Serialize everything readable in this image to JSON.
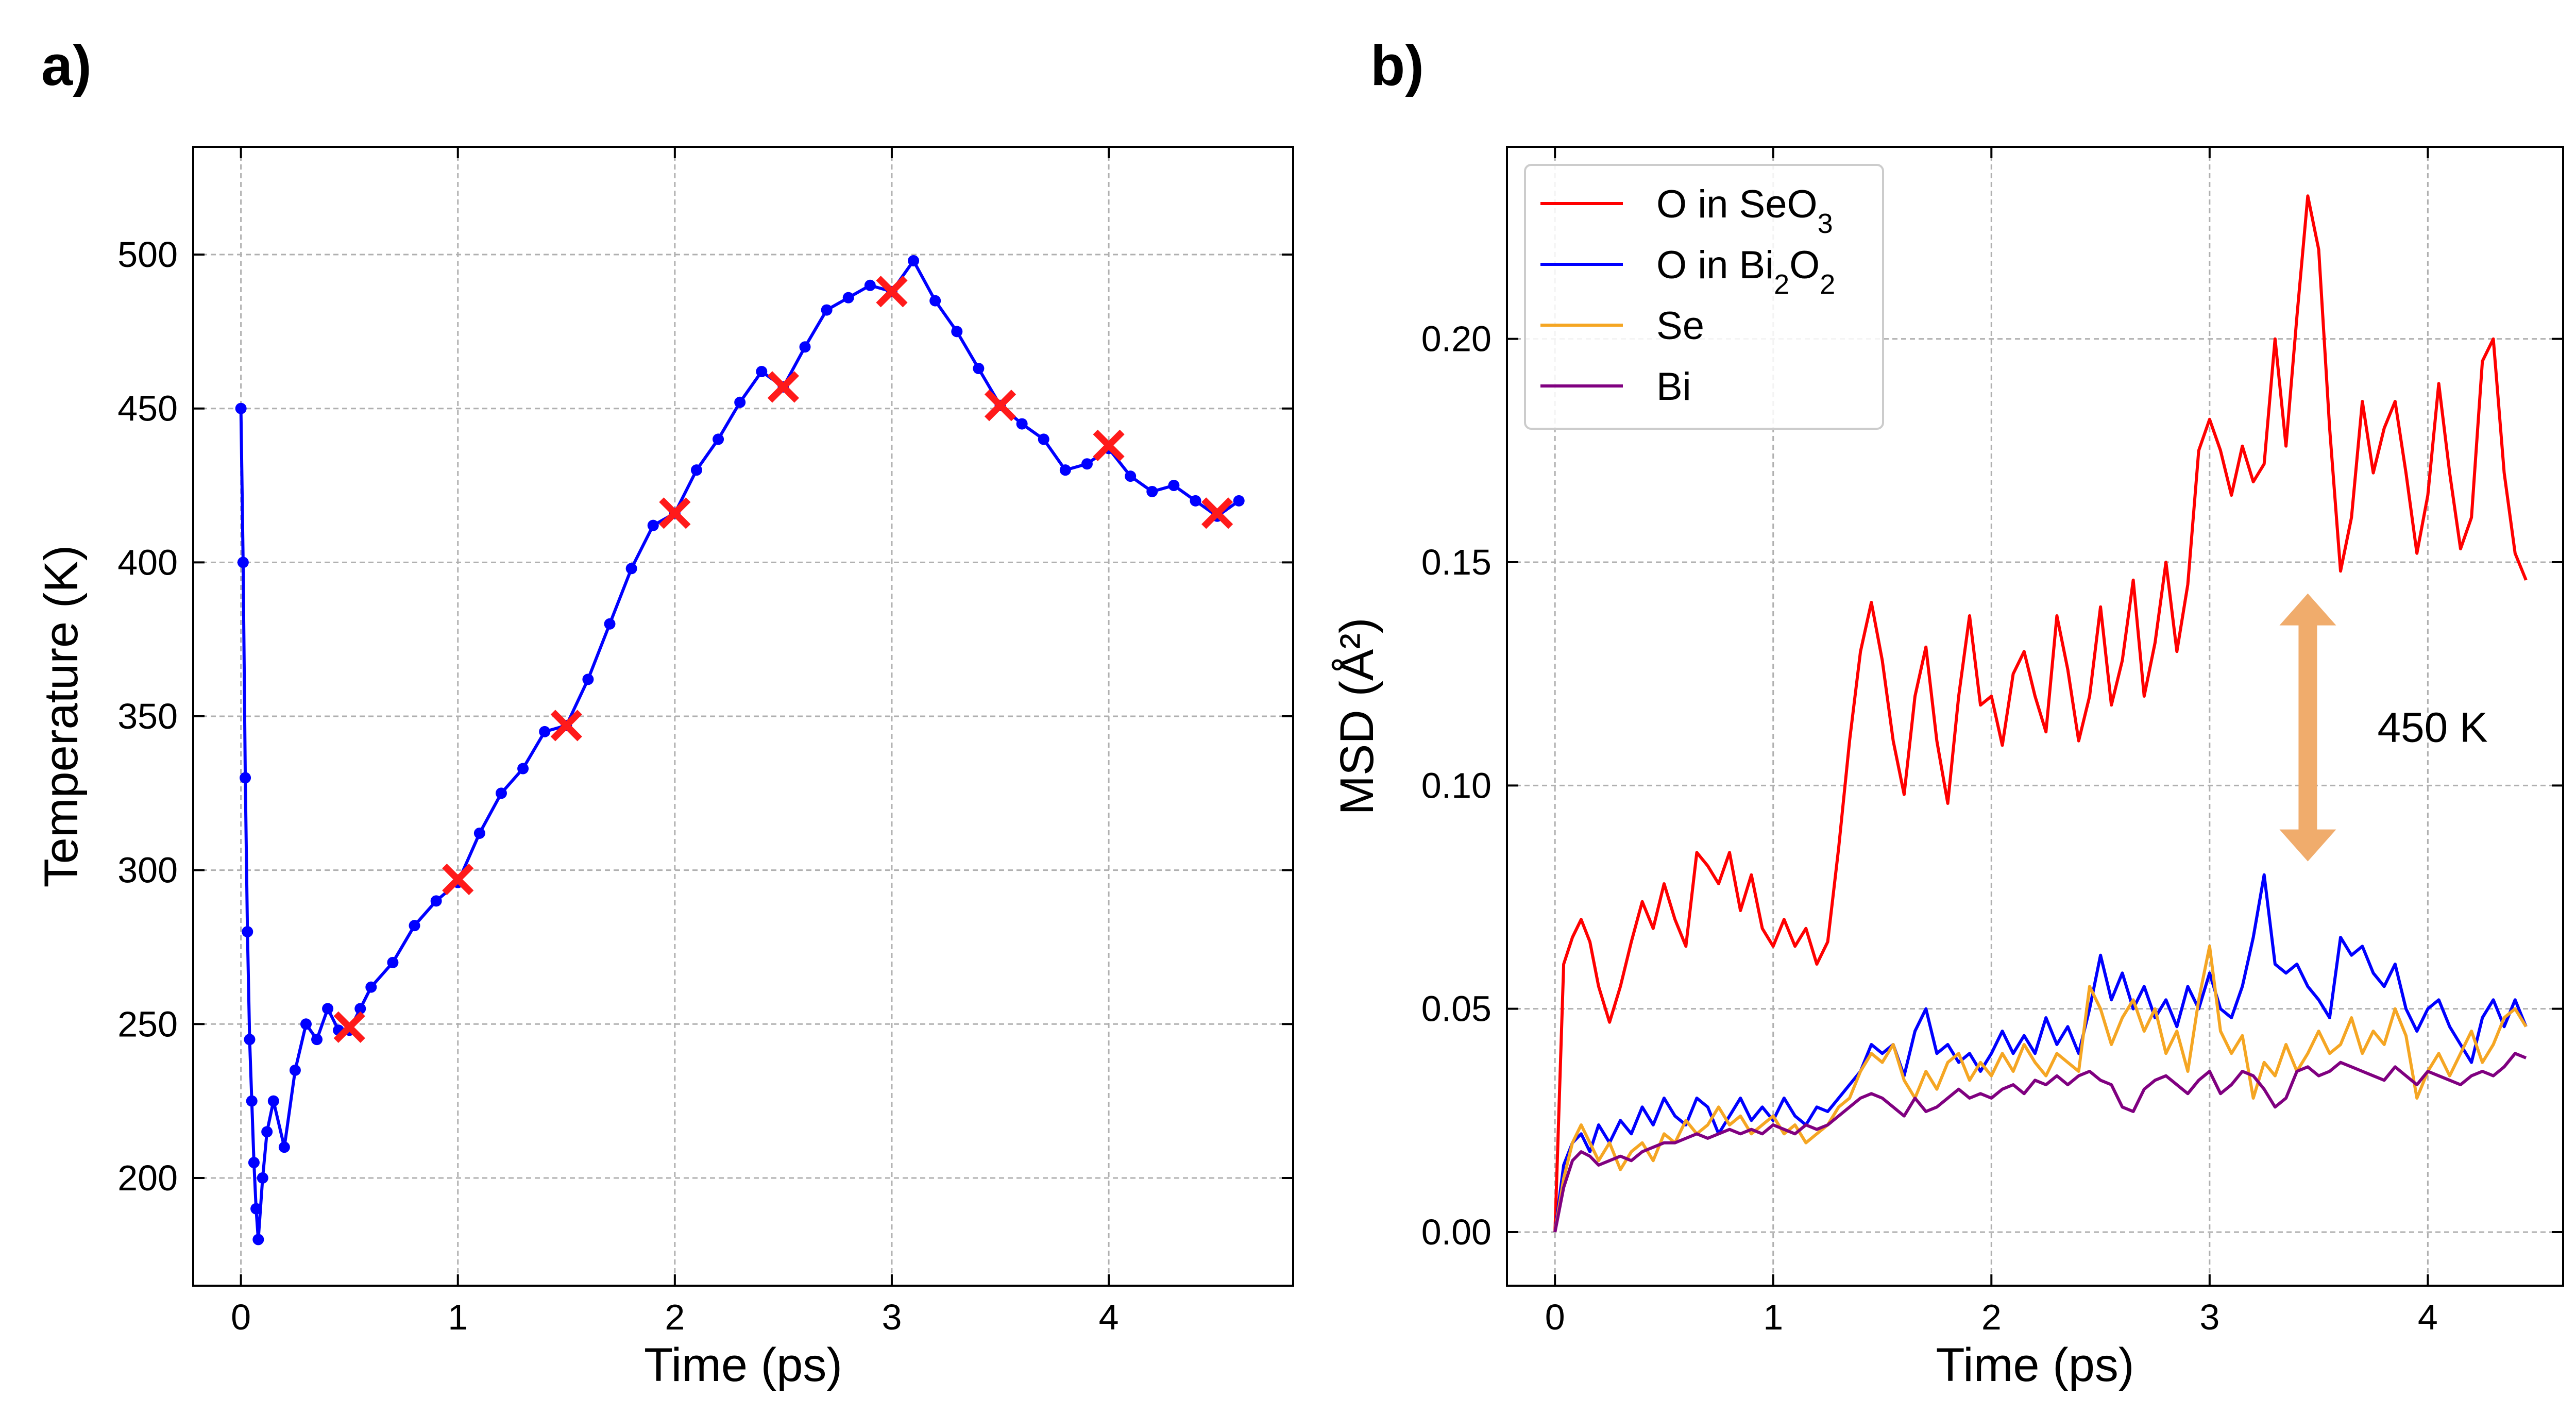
{
  "panels": {
    "a": {
      "label": "a)"
    },
    "b": {
      "label": "b)"
    }
  },
  "chart_data": [
    {
      "type": "scatter",
      "panel": "a)",
      "xlabel": "Time (ps)",
      "ylabel": "Temperature (K)",
      "xlim": [
        -0.22,
        4.85
      ],
      "ylim": [
        165,
        535
      ],
      "xticks": [
        0,
        1,
        2,
        3,
        4
      ],
      "yticks": [
        200,
        250,
        300,
        350,
        400,
        450,
        500
      ],
      "grid": true,
      "series": [
        {
          "color": "#0000ff",
          "marker": "dot",
          "x": [
            0.0,
            0.01,
            0.02,
            0.03,
            0.04,
            0.05,
            0.06,
            0.07,
            0.08,
            0.1,
            0.12,
            0.15,
            0.2,
            0.25,
            0.3,
            0.35,
            0.4,
            0.45,
            0.5,
            0.55,
            0.6,
            0.7,
            0.8,
            0.9,
            1.0,
            1.1,
            1.2,
            1.3,
            1.4,
            1.5,
            1.6,
            1.7,
            1.8,
            1.9,
            2.0,
            2.1,
            2.2,
            2.3,
            2.4,
            2.5,
            2.6,
            2.7,
            2.8,
            2.9,
            3.0,
            3.1,
            3.2,
            3.3,
            3.4,
            3.5,
            3.6,
            3.7,
            3.8,
            3.9,
            4.0,
            4.1,
            4.2,
            4.3,
            4.4,
            4.5,
            4.6
          ],
          "y": [
            450,
            400,
            330,
            280,
            245,
            225,
            205,
            190,
            180,
            200,
            215,
            225,
            210,
            235,
            250,
            245,
            255,
            248,
            248,
            255,
            262,
            270,
            282,
            290,
            296,
            312,
            325,
            333,
            345,
            347,
            362,
            380,
            398,
            412,
            416,
            430,
            440,
            452,
            462,
            457,
            470,
            482,
            486,
            490,
            488,
            498,
            485,
            475,
            463,
            451,
            445,
            440,
            430,
            432,
            437,
            428,
            423,
            425,
            420,
            415,
            420
          ]
        },
        {
          "color": "#ff1a1a",
          "marker": "x",
          "x": [
            0.5,
            1.0,
            1.5,
            2.0,
            2.5,
            3.0,
            3.5,
            4.0,
            4.5
          ],
          "y": [
            249,
            297,
            347,
            416,
            457,
            488,
            451,
            438,
            416
          ]
        }
      ]
    },
    {
      "type": "line",
      "panel": "b)",
      "xlabel": "Time (ps)",
      "ylabel": "MSD (Å²)",
      "xlim": [
        -0.22,
        4.62
      ],
      "ylim": [
        -0.012,
        0.243
      ],
      "xticks": [
        0,
        1,
        2,
        3,
        4
      ],
      "yticks": [
        0.0,
        0.05,
        0.1,
        0.15,
        0.2
      ],
      "ytick_labels": [
        "0.00",
        "0.05",
        "0.10",
        "0.15",
        "0.20"
      ],
      "grid": true,
      "legend_position": "top-left",
      "annotation": {
        "text": "450 K",
        "arrow_color": "#f0ac6c",
        "x": 3.45,
        "y_from": 0.143,
        "y_to": 0.083
      },
      "series": [
        {
          "legend": {
            "prefix": "O in SeO",
            "sub": "3"
          },
          "color": "#ff0000",
          "x": [
            0.0,
            0.04,
            0.08,
            0.12,
            0.16,
            0.2,
            0.25,
            0.3,
            0.35,
            0.4,
            0.45,
            0.5,
            0.55,
            0.6,
            0.65,
            0.7,
            0.75,
            0.8,
            0.85,
            0.9,
            0.95,
            1.0,
            1.05,
            1.1,
            1.15,
            1.2,
            1.25,
            1.3,
            1.35,
            1.4,
            1.45,
            1.5,
            1.55,
            1.6,
            1.65,
            1.7,
            1.75,
            1.8,
            1.85,
            1.9,
            1.95,
            2.0,
            2.05,
            2.1,
            2.15,
            2.2,
            2.25,
            2.3,
            2.35,
            2.4,
            2.45,
            2.5,
            2.55,
            2.6,
            2.65,
            2.7,
            2.75,
            2.8,
            2.85,
            2.9,
            2.95,
            3.0,
            3.05,
            3.1,
            3.15,
            3.2,
            3.25,
            3.3,
            3.35,
            3.4,
            3.45,
            3.5,
            3.55,
            3.6,
            3.65,
            3.7,
            3.75,
            3.8,
            3.85,
            3.9,
            3.95,
            4.0,
            4.05,
            4.1,
            4.15,
            4.2,
            4.25,
            4.3,
            4.35,
            4.4,
            4.45
          ],
          "y": [
            0.0,
            0.06,
            0.066,
            0.07,
            0.065,
            0.055,
            0.047,
            0.055,
            0.065,
            0.074,
            0.068,
            0.078,
            0.07,
            0.064,
            0.085,
            0.082,
            0.078,
            0.085,
            0.072,
            0.08,
            0.068,
            0.064,
            0.07,
            0.064,
            0.068,
            0.06,
            0.065,
            0.086,
            0.11,
            0.13,
            0.141,
            0.128,
            0.11,
            0.098,
            0.12,
            0.131,
            0.11,
            0.096,
            0.12,
            0.138,
            0.118,
            0.12,
            0.109,
            0.125,
            0.13,
            0.12,
            0.112,
            0.138,
            0.126,
            0.11,
            0.12,
            0.14,
            0.118,
            0.128,
            0.146,
            0.12,
            0.132,
            0.15,
            0.13,
            0.145,
            0.175,
            0.182,
            0.175,
            0.165,
            0.176,
            0.168,
            0.172,
            0.2,
            0.176,
            0.205,
            0.232,
            0.22,
            0.18,
            0.148,
            0.16,
            0.186,
            0.17,
            0.18,
            0.186,
            0.17,
            0.152,
            0.165,
            0.19,
            0.17,
            0.153,
            0.16,
            0.195,
            0.2,
            0.17,
            0.152,
            0.146
          ]
        },
        {
          "legend": {
            "prefix": "O in Bi",
            "sub1": "2",
            "mid": "O",
            "sub2": "2"
          },
          "color": "#0000ff",
          "x": [
            0.0,
            0.04,
            0.08,
            0.12,
            0.16,
            0.2,
            0.25,
            0.3,
            0.35,
            0.4,
            0.45,
            0.5,
            0.55,
            0.6,
            0.65,
            0.7,
            0.75,
            0.8,
            0.85,
            0.9,
            0.95,
            1.0,
            1.05,
            1.1,
            1.15,
            1.2,
            1.25,
            1.3,
            1.35,
            1.4,
            1.45,
            1.5,
            1.55,
            1.6,
            1.65,
            1.7,
            1.75,
            1.8,
            1.85,
            1.9,
            1.95,
            2.0,
            2.05,
            2.1,
            2.15,
            2.2,
            2.25,
            2.3,
            2.35,
            2.4,
            2.45,
            2.5,
            2.55,
            2.6,
            2.65,
            2.7,
            2.75,
            2.8,
            2.85,
            2.9,
            2.95,
            3.0,
            3.05,
            3.1,
            3.15,
            3.2,
            3.25,
            3.3,
            3.35,
            3.4,
            3.45,
            3.5,
            3.55,
            3.6,
            3.65,
            3.7,
            3.75,
            3.8,
            3.85,
            3.9,
            3.95,
            4.0,
            4.05,
            4.1,
            4.15,
            4.2,
            4.25,
            4.3,
            4.35,
            4.4,
            4.45
          ],
          "y": [
            0.0,
            0.015,
            0.02,
            0.022,
            0.018,
            0.024,
            0.02,
            0.025,
            0.022,
            0.028,
            0.024,
            0.03,
            0.026,
            0.024,
            0.03,
            0.028,
            0.022,
            0.026,
            0.03,
            0.025,
            0.028,
            0.025,
            0.03,
            0.026,
            0.024,
            0.028,
            0.027,
            0.03,
            0.033,
            0.036,
            0.042,
            0.04,
            0.042,
            0.035,
            0.045,
            0.05,
            0.04,
            0.042,
            0.038,
            0.04,
            0.036,
            0.04,
            0.045,
            0.04,
            0.044,
            0.04,
            0.048,
            0.042,
            0.046,
            0.04,
            0.05,
            0.062,
            0.052,
            0.058,
            0.05,
            0.055,
            0.048,
            0.052,
            0.046,
            0.055,
            0.05,
            0.058,
            0.05,
            0.048,
            0.055,
            0.066,
            0.08,
            0.06,
            0.058,
            0.06,
            0.055,
            0.052,
            0.048,
            0.066,
            0.062,
            0.064,
            0.058,
            0.055,
            0.06,
            0.05,
            0.045,
            0.05,
            0.052,
            0.046,
            0.042,
            0.038,
            0.048,
            0.052,
            0.046,
            0.052,
            0.046
          ]
        },
        {
          "legend": {
            "prefix": "Se"
          },
          "color": "#f5a623",
          "x": [
            0.0,
            0.04,
            0.08,
            0.12,
            0.16,
            0.2,
            0.25,
            0.3,
            0.35,
            0.4,
            0.45,
            0.5,
            0.55,
            0.6,
            0.65,
            0.7,
            0.75,
            0.8,
            0.85,
            0.9,
            0.95,
            1.0,
            1.05,
            1.1,
            1.15,
            1.2,
            1.25,
            1.3,
            1.35,
            1.4,
            1.45,
            1.5,
            1.55,
            1.6,
            1.65,
            1.7,
            1.75,
            1.8,
            1.85,
            1.9,
            1.95,
            2.0,
            2.05,
            2.1,
            2.15,
            2.2,
            2.25,
            2.3,
            2.35,
            2.4,
            2.45,
            2.5,
            2.55,
            2.6,
            2.65,
            2.7,
            2.75,
            2.8,
            2.85,
            2.9,
            2.95,
            3.0,
            3.05,
            3.1,
            3.15,
            3.2,
            3.25,
            3.3,
            3.35,
            3.4,
            3.45,
            3.5,
            3.55,
            3.6,
            3.65,
            3.7,
            3.75,
            3.8,
            3.85,
            3.9,
            3.95,
            4.0,
            4.05,
            4.1,
            4.15,
            4.2,
            4.25,
            4.3,
            4.35,
            4.4,
            4.45
          ],
          "y": [
            0.0,
            0.012,
            0.02,
            0.024,
            0.02,
            0.016,
            0.02,
            0.014,
            0.018,
            0.02,
            0.016,
            0.022,
            0.02,
            0.025,
            0.022,
            0.024,
            0.028,
            0.024,
            0.026,
            0.022,
            0.024,
            0.026,
            0.022,
            0.024,
            0.02,
            0.022,
            0.024,
            0.028,
            0.03,
            0.036,
            0.04,
            0.038,
            0.042,
            0.034,
            0.03,
            0.036,
            0.032,
            0.038,
            0.04,
            0.034,
            0.038,
            0.035,
            0.04,
            0.036,
            0.042,
            0.038,
            0.035,
            0.04,
            0.038,
            0.036,
            0.055,
            0.05,
            0.042,
            0.048,
            0.052,
            0.045,
            0.05,
            0.04,
            0.045,
            0.036,
            0.052,
            0.064,
            0.045,
            0.04,
            0.044,
            0.03,
            0.038,
            0.035,
            0.042,
            0.036,
            0.04,
            0.045,
            0.04,
            0.042,
            0.048,
            0.04,
            0.045,
            0.042,
            0.05,
            0.044,
            0.03,
            0.036,
            0.04,
            0.035,
            0.04,
            0.045,
            0.038,
            0.042,
            0.048,
            0.05,
            0.046
          ]
        },
        {
          "legend": {
            "prefix": "Bi"
          },
          "color": "#800080",
          "x": [
            0.0,
            0.04,
            0.08,
            0.12,
            0.16,
            0.2,
            0.25,
            0.3,
            0.35,
            0.4,
            0.45,
            0.5,
            0.55,
            0.6,
            0.65,
            0.7,
            0.75,
            0.8,
            0.85,
            0.9,
            0.95,
            1.0,
            1.05,
            1.1,
            1.15,
            1.2,
            1.25,
            1.3,
            1.35,
            1.4,
            1.45,
            1.5,
            1.55,
            1.6,
            1.65,
            1.7,
            1.75,
            1.8,
            1.85,
            1.9,
            1.95,
            2.0,
            2.05,
            2.1,
            2.15,
            2.2,
            2.25,
            2.3,
            2.35,
            2.4,
            2.45,
            2.5,
            2.55,
            2.6,
            2.65,
            2.7,
            2.75,
            2.8,
            2.85,
            2.9,
            2.95,
            3.0,
            3.05,
            3.1,
            3.15,
            3.2,
            3.25,
            3.3,
            3.35,
            3.4,
            3.45,
            3.5,
            3.55,
            3.6,
            3.65,
            3.7,
            3.75,
            3.8,
            3.85,
            3.9,
            3.95,
            4.0,
            4.05,
            4.1,
            4.15,
            4.2,
            4.25,
            4.3,
            4.35,
            4.4,
            4.45
          ],
          "y": [
            0.0,
            0.01,
            0.016,
            0.018,
            0.017,
            0.015,
            0.016,
            0.017,
            0.016,
            0.018,
            0.019,
            0.02,
            0.02,
            0.021,
            0.022,
            0.021,
            0.022,
            0.023,
            0.022,
            0.023,
            0.022,
            0.024,
            0.023,
            0.022,
            0.024,
            0.023,
            0.024,
            0.026,
            0.028,
            0.03,
            0.031,
            0.03,
            0.028,
            0.026,
            0.03,
            0.027,
            0.028,
            0.03,
            0.032,
            0.03,
            0.031,
            0.03,
            0.032,
            0.033,
            0.031,
            0.034,
            0.033,
            0.035,
            0.033,
            0.035,
            0.036,
            0.034,
            0.033,
            0.028,
            0.027,
            0.032,
            0.034,
            0.035,
            0.033,
            0.031,
            0.034,
            0.036,
            0.031,
            0.033,
            0.036,
            0.035,
            0.032,
            0.028,
            0.03,
            0.036,
            0.037,
            0.035,
            0.036,
            0.038,
            0.037,
            0.036,
            0.035,
            0.034,
            0.037,
            0.035,
            0.033,
            0.036,
            0.035,
            0.034,
            0.033,
            0.035,
            0.036,
            0.035,
            0.037,
            0.04,
            0.039
          ]
        }
      ]
    }
  ]
}
